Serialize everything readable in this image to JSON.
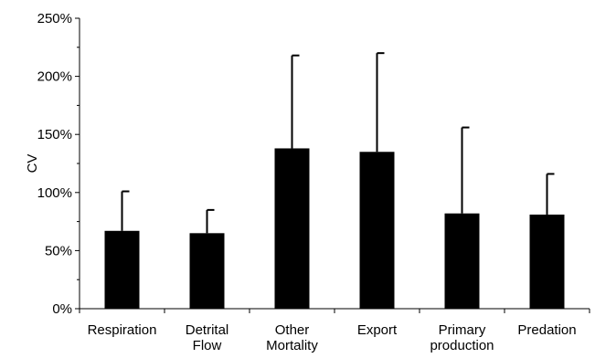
{
  "chart_data": {
    "type": "bar",
    "categories": [
      [
        "Respiration"
      ],
      [
        "Detrital",
        "Flow"
      ],
      [
        "Other",
        "Mortality"
      ],
      [
        "Export"
      ],
      [
        "Primary",
        "production"
      ],
      [
        "Predation"
      ]
    ],
    "series": [
      {
        "values": [
          67,
          65,
          138,
          135,
          82,
          81
        ],
        "error_upper": [
          101,
          85,
          218,
          220,
          156,
          116
        ]
      }
    ],
    "ylabel": "CV",
    "ylim": [
      0,
      250
    ],
    "yticks": [
      0,
      50,
      100,
      150,
      200,
      250
    ],
    "ytick_labels": [
      "0%",
      "50%",
      "100%",
      "150%",
      "200%",
      "250%"
    ],
    "grid": false,
    "legend": "none",
    "bar_color": "#000000"
  }
}
